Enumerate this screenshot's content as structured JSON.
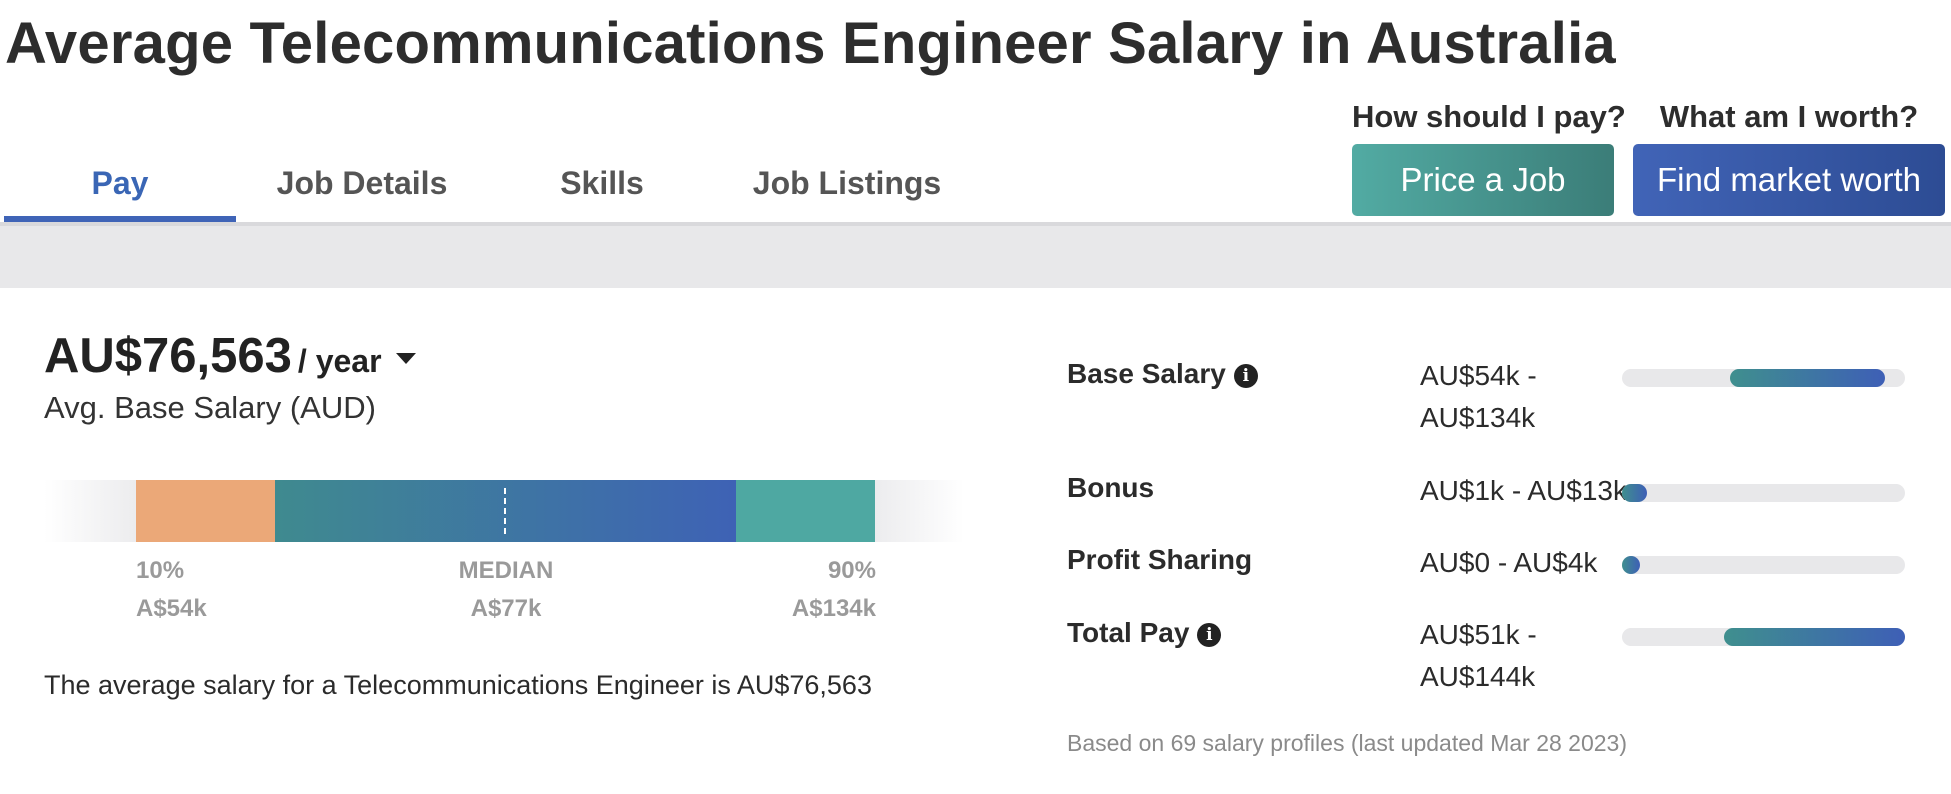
{
  "page": {
    "title": "Average Telecommunications Engineer Salary in Australia"
  },
  "tabs": [
    {
      "label": "Pay",
      "active": true
    },
    {
      "label": "Job Details",
      "active": false
    },
    {
      "label": "Skills",
      "active": false
    },
    {
      "label": "Job Listings",
      "active": false
    }
  ],
  "cta": {
    "price": {
      "question": "How should I pay?",
      "button": "Price a Job"
    },
    "worth": {
      "question": "What am I worth?",
      "button": "Find market worth"
    }
  },
  "colors": {
    "accent_blue": "#3f64b7",
    "teal": "#4ea8a2",
    "orange": "#eba878",
    "track_gray": "#e8e8ea"
  },
  "salary": {
    "amount": "AU$76,563",
    "period": "/ year",
    "caret_icon": "caret-down-icon",
    "subtitle": "Avg. Base Salary (AUD)",
    "summary": "The average salary for a Telecommunications Engineer is AU$76,563"
  },
  "distribution": {
    "p10": {
      "label": "10%",
      "value": "A$54k"
    },
    "median": {
      "label": "MEDIAN",
      "value": "A$77k"
    },
    "p90": {
      "label": "90%",
      "value": "A$134k"
    }
  },
  "breakdown": [
    {
      "label": "Base Salary",
      "info": true,
      "range_line1": "AU$54k -",
      "range_line2": "AU$134k",
      "fill_start": 0.38,
      "fill_end": 0.93
    },
    {
      "label": "Bonus",
      "info": false,
      "range_line1": "AU$1k - AU$13k",
      "range_line2": "",
      "fill_start": 0.0,
      "fill_end": 0.09
    },
    {
      "label": "Profit Sharing",
      "info": false,
      "range_line1": "AU$0 - AU$4k",
      "range_line2": "",
      "fill_start": 0.0,
      "fill_end": 0.05
    },
    {
      "label": "Total Pay",
      "info": true,
      "range_line1": "AU$51k -",
      "range_line2": "AU$144k",
      "fill_start": 0.36,
      "fill_end": 1.0
    }
  ],
  "info_icon_glyph": "i",
  "footnote": "Based on 69 salary profiles (last updated Mar 28 2023)"
}
